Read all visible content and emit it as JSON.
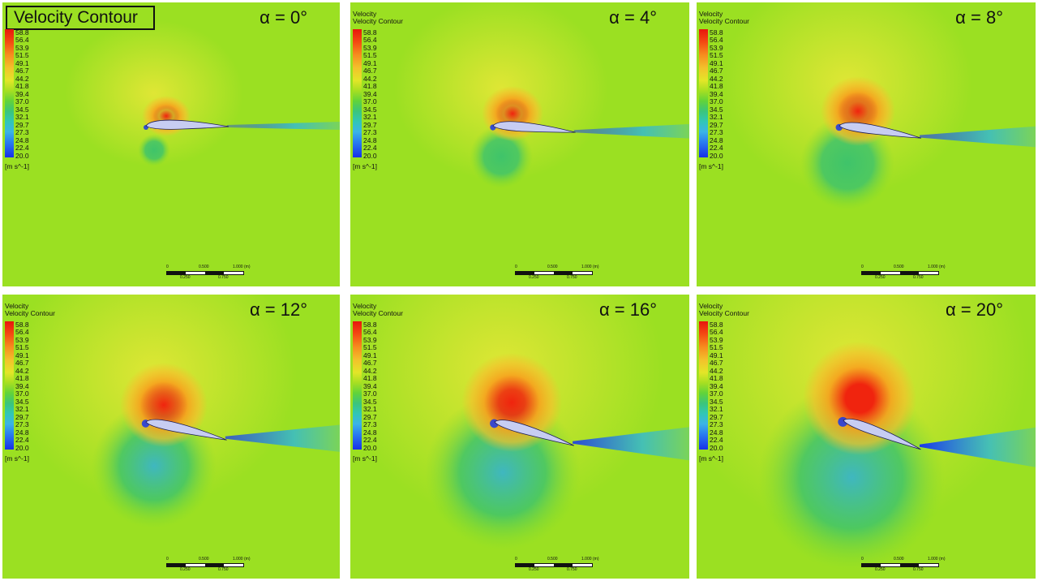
{
  "title": "Velocity Contour",
  "legend": {
    "title_line1": "Velocity",
    "title_line2": "Velocity Contour",
    "ticks": [
      "58.8",
      "56.4",
      "53.9",
      "51.5",
      "49.1",
      "46.7",
      "44.2",
      "41.8",
      "39.4",
      "37.0",
      "34.5",
      "32.1",
      "29.7",
      "27.3",
      "24.8",
      "22.4",
      "20.0"
    ],
    "unit": "[m s^-1]"
  },
  "scale_bar": {
    "top": [
      "0",
      "0.500",
      "1.000"
    ],
    "unit": "(m)",
    "bottom": [
      "0.250",
      "0.750"
    ]
  },
  "panels": [
    {
      "id": "aoa-0",
      "label": "α = 0°",
      "angle_deg": 0
    },
    {
      "id": "aoa-4",
      "label": "α = 4°",
      "angle_deg": 4
    },
    {
      "id": "aoa-8",
      "label": "α = 8°",
      "angle_deg": 8
    },
    {
      "id": "aoa-12",
      "label": "α = 12°",
      "angle_deg": 12
    },
    {
      "id": "aoa-16",
      "label": "α = 16°",
      "angle_deg": 16
    },
    {
      "id": "aoa-20",
      "label": "α = 20°",
      "angle_deg": 20
    }
  ],
  "colors": {
    "background": "#9be022",
    "high": "#f0240e",
    "mid_high": "#f3c12b",
    "mid_low": "#3fc46a",
    "low": "#1a37ea",
    "airfoil": "#c7cdf2"
  }
}
